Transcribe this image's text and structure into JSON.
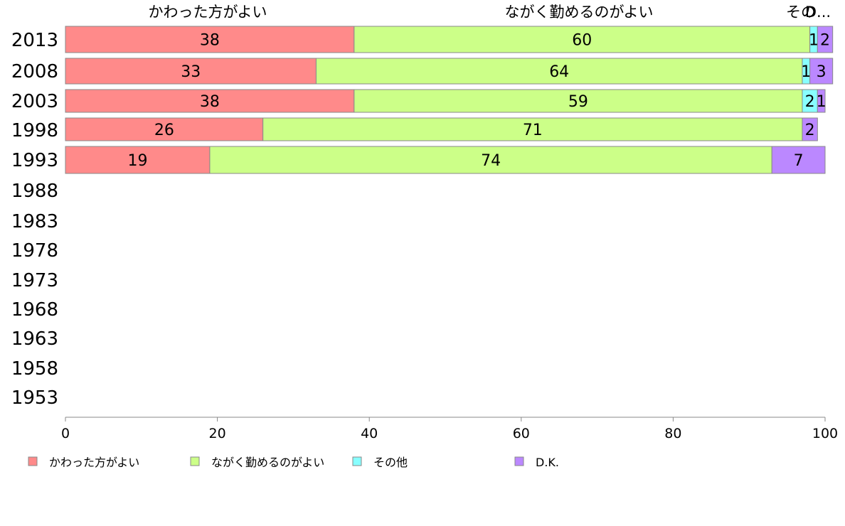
{
  "chart_data": {
    "type": "bar",
    "orientation": "horizontal",
    "stacked": true,
    "categories": [
      "2013",
      "2008",
      "2003",
      "1998",
      "1993",
      "1988",
      "1983",
      "1978",
      "1973",
      "1968",
      "1963",
      "1958",
      "1953"
    ],
    "series": [
      {
        "name": "かわった方がよい",
        "color": "#ff8a8a",
        "values": [
          38,
          33,
          38,
          26,
          19,
          null,
          null,
          null,
          null,
          null,
          null,
          null,
          null
        ],
        "labels": [
          "38",
          "33",
          "38",
          "26",
          "19",
          null,
          null,
          null,
          null,
          null,
          null,
          null,
          null
        ]
      },
      {
        "name": "ながく勤めるのがよい",
        "color": "#ccff88",
        "values": [
          60,
          64,
          59,
          71,
          74,
          null,
          null,
          null,
          null,
          null,
          null,
          null,
          null
        ],
        "labels": [
          "60",
          "64",
          "59",
          "71",
          "74",
          null,
          null,
          null,
          null,
          null,
          null,
          null,
          null
        ]
      },
      {
        "name": "その他",
        "color": "#88ffff",
        "values": [
          1,
          1,
          2,
          0,
          0,
          null,
          null,
          null,
          null,
          null,
          null,
          null,
          null
        ],
        "labels": [
          "1",
          "1",
          "2",
          null,
          null,
          null,
          null,
          null,
          null,
          null,
          null,
          null,
          null
        ]
      },
      {
        "name": "D.K.",
        "color": "#bb88ff",
        "values": [
          2,
          3,
          1,
          2,
          7,
          null,
          null,
          null,
          null,
          null,
          null,
          null,
          null
        ],
        "labels": [
          "2",
          "3",
          "1",
          "2",
          "7",
          null,
          null,
          null,
          null,
          null,
          null,
          null,
          null
        ]
      }
    ],
    "top_labels": [
      "かわった方がよい",
      "ながく勤めるのがよい",
      "その",
      "D..."
    ],
    "x_ticks": [
      "0",
      "20",
      "40",
      "60",
      "80",
      "100"
    ],
    "xlim": [
      0,
      100
    ],
    "title": "",
    "xlabel": "",
    "ylabel": "",
    "grid": false,
    "legend_placement": "bottom-left",
    "legend": [
      "かわった方がよい",
      "ながく勤めるのがよい",
      "その他",
      "D.K."
    ]
  }
}
